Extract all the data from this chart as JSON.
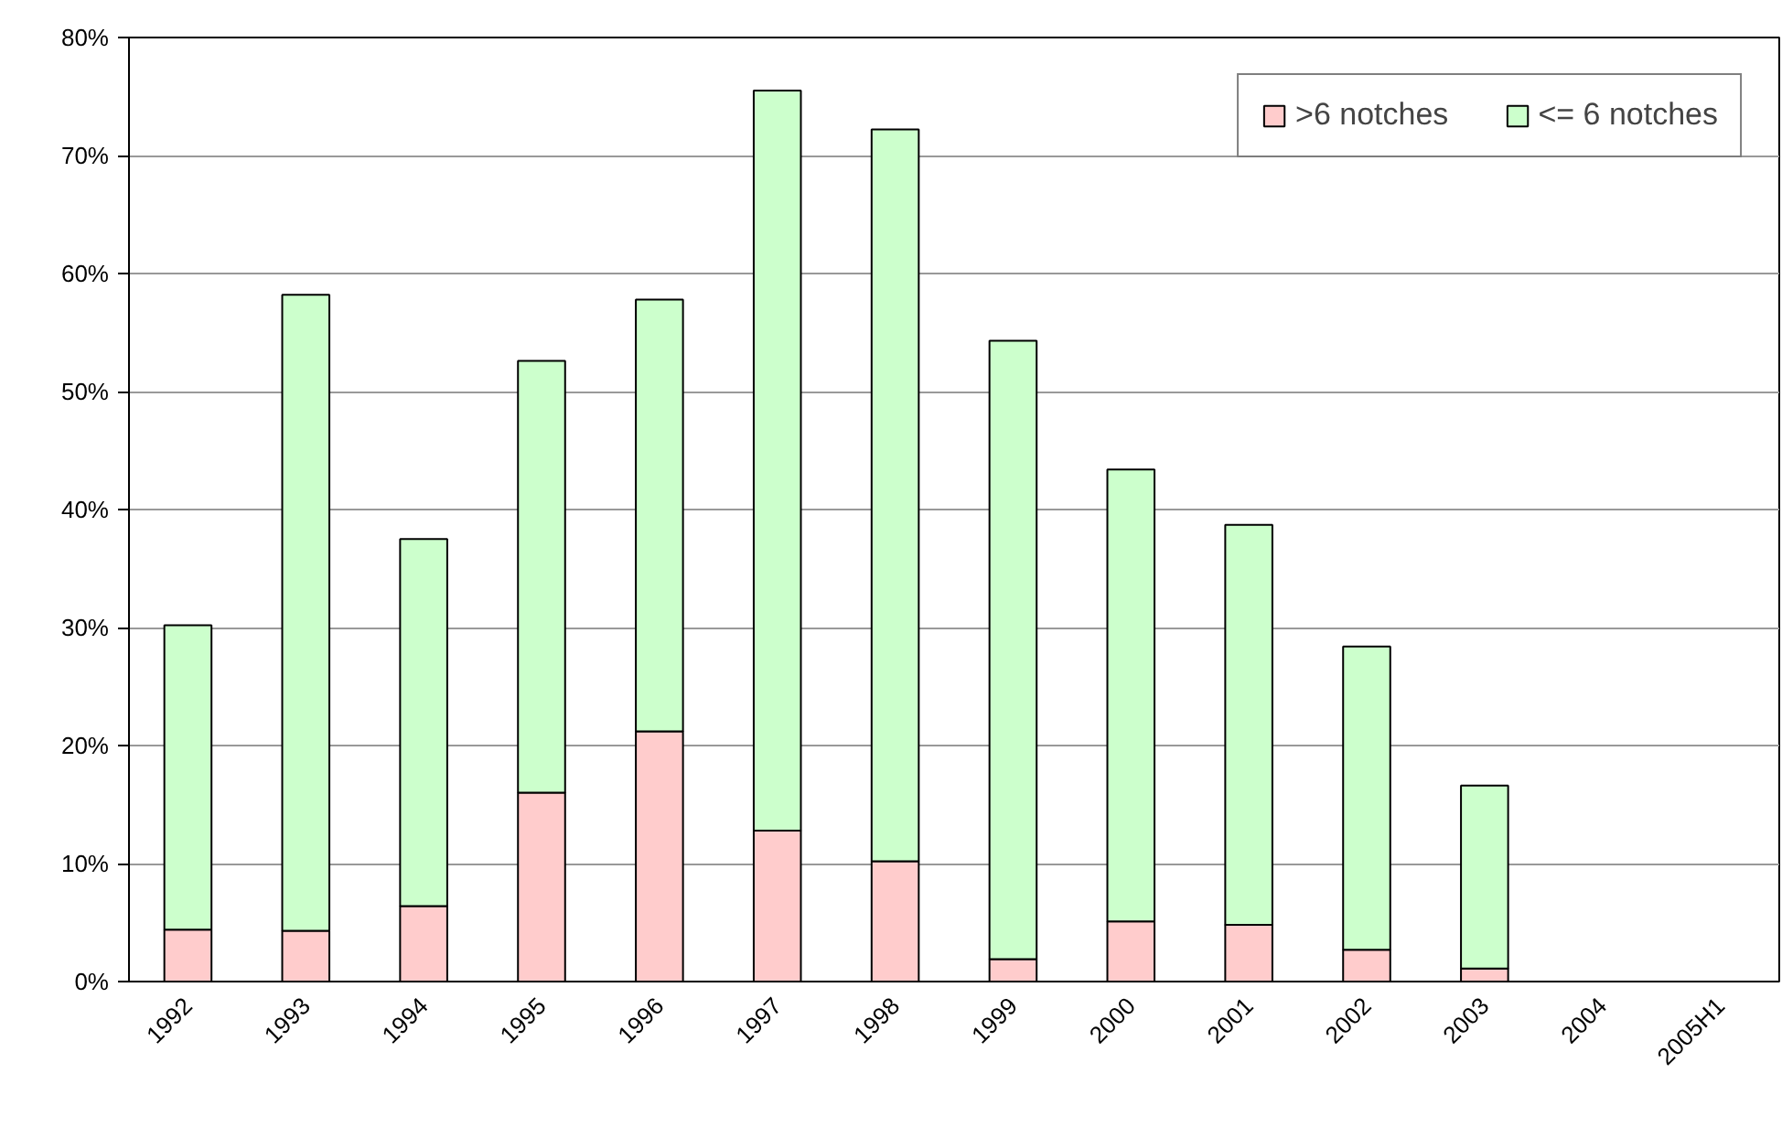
{
  "chart_data": {
    "type": "bar",
    "stacked": true,
    "categories": [
      "1992",
      "1993",
      "1994",
      "1995",
      "1996",
      "1997",
      "1998",
      "1999",
      "2000",
      "2001",
      "2002",
      "2003",
      "2004",
      "2005H1"
    ],
    "series": [
      {
        "name": ">6 notches",
        "color": "#ffcccc",
        "values": [
          4.4,
          4.3,
          6.4,
          16.0,
          21.2,
          12.8,
          10.2,
          1.9,
          5.1,
          4.8,
          2.7,
          1.1,
          null,
          null
        ]
      },
      {
        "name": "<= 6 notches",
        "color": "#ccffcc",
        "values": [
          25.8,
          53.9,
          31.1,
          36.6,
          36.6,
          62.7,
          62.0,
          52.4,
          38.3,
          33.9,
          25.7,
          15.5,
          null,
          null
        ]
      }
    ],
    "ylim": [
      0,
      80
    ],
    "yticks": [
      {
        "value": 0,
        "label": "0%"
      },
      {
        "value": 10,
        "label": "10%"
      },
      {
        "value": 20,
        "label": "20%"
      },
      {
        "value": 30,
        "label": "30%"
      },
      {
        "value": 40,
        "label": "40%"
      },
      {
        "value": 50,
        "label": "50%"
      },
      {
        "value": 60,
        "label": "60%"
      },
      {
        "value": 70,
        "label": "70%"
      },
      {
        "value": 80,
        "label": "80%"
      }
    ],
    "grid": "y",
    "legend": "top right"
  }
}
